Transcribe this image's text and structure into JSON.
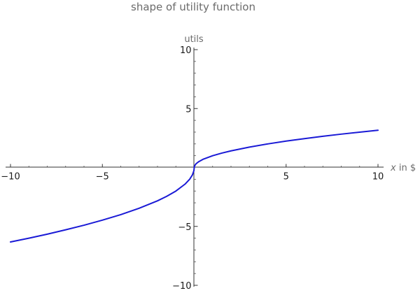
{
  "chart_data": {
    "type": "line",
    "title": "shape of utility function",
    "xlabel_italic": "x",
    "xlabel_rest": " in $",
    "ylabel": "utils",
    "xlim": [
      -10,
      10
    ],
    "ylim": [
      -10,
      10
    ],
    "x_ticks": [
      -10,
      -5,
      5,
      10
    ],
    "y_ticks": [
      -10,
      -5,
      5,
      10
    ],
    "x_tick_labels": [
      "−10",
      "−5",
      "5",
      "10"
    ],
    "y_tick_labels": [
      "−10",
      "−5",
      "5",
      "10"
    ],
    "grid": false,
    "series": [
      {
        "color": "#1a1ad6",
        "x": [
          -10,
          -9,
          -8,
          -7,
          -6,
          -5,
          -4,
          -3,
          -2,
          -1.5,
          -1,
          -0.5,
          -0.25,
          -0.1,
          -0.02,
          0,
          0.02,
          0.1,
          0.25,
          0.5,
          1,
          1.5,
          2,
          3,
          4,
          5,
          6,
          7,
          8,
          9,
          10
        ],
        "y": [
          -6.32,
          -6.0,
          -5.66,
          -5.29,
          -4.9,
          -4.47,
          -4.0,
          -3.46,
          -2.83,
          -2.45,
          -2.0,
          -1.41,
          -1.0,
          -0.63,
          -0.28,
          0,
          0.14,
          0.32,
          0.5,
          0.71,
          1.0,
          1.22,
          1.41,
          1.73,
          2.0,
          2.24,
          2.45,
          2.65,
          2.83,
          3.0,
          3.16
        ]
      }
    ]
  }
}
